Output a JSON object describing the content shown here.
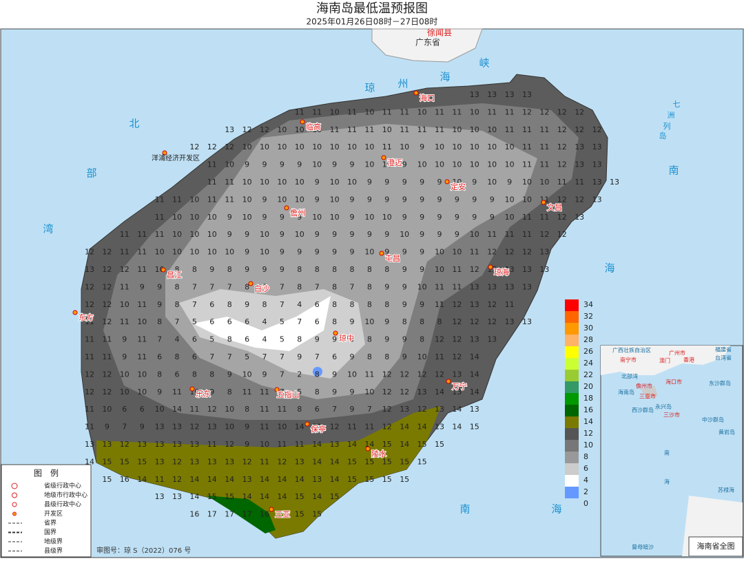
{
  "header": {
    "title": "海南岛最低温预报图",
    "subtitle": "2025年01月26日08时－27日08时"
  },
  "regions": [
    "徐闻县",
    "广东省"
  ],
  "seas": [
    "琼",
    "州",
    "海",
    "峡",
    "北",
    "部",
    "湾",
    "南",
    "海",
    "南",
    "海",
    "七",
    "洲",
    "列",
    "岛"
  ],
  "cities": [
    "海口",
    "临高",
    "洋浦经济开发区",
    "澄迈",
    "定安",
    "文昌",
    "儋州",
    "屯昌",
    "琼海",
    "昌江",
    "白沙",
    "东方",
    "琼中",
    "万宁",
    "乐东",
    "五指山",
    "保亭",
    "陵水",
    "三亚"
  ],
  "grid": [
    [
      13,
      13,
      13,
      13
    ],
    [
      11,
      11,
      10,
      11,
      10,
      11,
      11,
      10,
      11,
      11,
      10,
      11,
      11,
      12,
      12,
      12,
      12
    ],
    [
      13,
      12,
      12,
      10,
      10,
      10,
      11,
      11,
      11,
      10,
      11,
      11,
      11,
      10,
      10,
      10,
      11,
      11,
      11,
      12,
      12,
      12
    ],
    [
      12,
      12,
      12,
      10,
      10,
      10,
      10,
      10,
      10,
      10,
      10,
      11,
      10,
      9,
      10,
      10,
      10,
      10,
      10,
      11,
      11,
      12,
      13,
      13
    ],
    [
      11,
      10,
      9,
      9,
      9,
      9,
      10,
      9,
      9,
      10,
      10,
      9,
      10,
      10,
      10,
      10,
      10,
      10,
      11,
      11,
      12,
      13,
      13
    ],
    [
      11,
      11,
      10,
      10,
      10,
      10,
      9,
      10,
      10,
      9,
      9,
      9,
      9,
      9,
      10,
      9,
      10,
      9,
      10,
      10,
      11,
      11,
      13,
      13
    ],
    [
      11,
      11,
      10,
      11,
      11,
      10,
      9,
      10,
      10,
      9,
      10,
      9,
      9,
      9,
      9,
      9,
      9,
      9,
      9,
      9,
      10,
      10,
      11,
      12,
      12,
      13
    ],
    [
      11,
      10,
      10,
      10,
      9,
      10,
      9,
      9,
      9,
      10,
      10,
      9,
      10,
      10,
      9,
      9,
      9,
      9,
      9,
      9,
      10,
      11,
      11,
      12,
      13
    ],
    [
      11,
      11,
      11,
      10,
      10,
      10,
      9,
      9,
      10,
      9,
      10,
      9,
      9,
      9,
      9,
      9,
      10,
      9,
      9,
      9,
      10,
      11,
      11,
      11,
      12,
      12
    ],
    [
      12,
      12,
      11,
      11,
      10,
      10,
      10,
      10,
      10,
      9,
      10,
      9,
      9,
      9,
      9,
      9,
      10,
      9,
      9,
      9,
      10,
      10,
      11,
      12,
      12,
      12,
      13
    ],
    [
      13,
      12,
      12,
      11,
      10,
      8,
      8,
      9,
      8,
      9,
      9,
      9,
      8,
      8,
      8,
      8,
      8,
      8,
      9,
      9,
      10,
      11,
      12,
      12,
      13,
      13,
      13
    ],
    [
      12,
      12,
      11,
      9,
      9,
      8,
      7,
      7,
      7,
      8,
      8,
      7,
      8,
      7,
      8,
      7,
      8,
      9,
      9,
      10,
      11,
      11,
      13,
      13,
      13,
      13
    ],
    [
      12,
      12,
      10,
      11,
      9,
      8,
      7,
      6,
      8,
      9,
      8,
      7,
      4,
      6,
      8,
      8,
      8,
      8,
      9,
      9,
      11,
      12,
      13,
      12,
      11
    ],
    [
      11,
      12,
      11,
      10,
      8,
      7,
      5,
      6,
      6,
      6,
      4,
      5,
      7,
      6,
      8,
      9,
      10,
      9,
      8,
      8,
      8,
      12,
      12,
      12,
      13,
      13
    ],
    [
      11,
      11,
      9,
      11,
      7,
      4,
      6,
      5,
      8,
      6,
      4,
      5,
      8,
      9,
      9,
      9,
      8,
      9,
      9,
      8,
      12,
      12,
      13,
      13
    ],
    [
      11,
      11,
      9,
      11,
      6,
      8,
      6,
      7,
      7,
      5,
      7,
      7,
      9,
      7,
      6,
      9,
      8,
      8,
      9,
      10,
      11,
      12,
      14
    ],
    [
      12,
      12,
      10,
      10,
      8,
      6,
      8,
      8,
      9,
      10,
      9,
      7,
      2,
      8,
      9,
      10,
      11,
      12,
      12,
      12,
      12,
      13,
      14
    ],
    [
      12,
      12,
      10,
      10,
      9,
      11,
      10,
      9,
      8,
      11,
      11,
      7,
      5,
      8,
      9,
      9,
      10,
      12,
      12,
      13,
      14,
      13,
      14
    ],
    [
      11,
      10,
      6,
      6,
      10,
      14,
      11,
      12,
      10,
      8,
      11,
      11,
      8,
      6,
      7,
      9,
      7,
      12,
      13,
      12,
      13,
      14,
      13
    ],
    [
      11,
      9,
      7,
      9,
      13,
      13,
      12,
      13,
      10,
      9,
      11,
      10,
      14,
      11,
      12,
      11,
      11,
      12,
      14,
      14,
      13,
      14,
      15
    ],
    [
      13,
      13,
      12,
      13,
      13,
      13,
      13,
      11,
      12,
      9,
      10,
      11,
      11,
      14,
      13,
      14,
      14,
      15,
      14,
      15,
      15
    ],
    [
      14,
      15,
      15,
      15,
      13,
      12,
      13,
      13,
      13,
      12,
      11,
      12,
      13,
      14,
      14,
      15,
      15,
      15,
      15,
      15
    ],
    [
      15,
      16,
      14,
      11,
      12,
      14,
      14,
      14,
      13,
      14,
      14,
      14,
      13,
      14,
      15,
      15,
      15,
      15
    ],
    [
      13,
      13,
      14,
      15,
      15,
      14,
      14,
      14,
      15,
      14,
      15
    ],
    [
      16,
      17,
      17,
      17,
      16,
      15,
      15,
      15
    ]
  ],
  "scale": {
    "values": [
      34,
      32,
      30,
      28,
      26,
      24,
      22,
      20,
      18,
      16,
      14,
      12,
      10,
      8,
      6,
      4,
      2,
      0
    ],
    "colors": [
      "#ff0000",
      "#ff6600",
      "#ff9900",
      "#ffb366",
      "#ffff00",
      "#ccff33",
      "#99cc33",
      "#339966",
      "#009900",
      "#006600",
      "#7a7a00",
      "#555555",
      "#777777",
      "#999999",
      "#cccccc",
      "#ffffff",
      "#6699ff",
      "#3366ff"
    ]
  },
  "legend": {
    "title": "图　例",
    "items": [
      "省级行政中心",
      "地级市行政中心",
      "县级行政中心",
      "开发区",
      "省界",
      "国界",
      "地级界",
      "县级界"
    ]
  },
  "approval": "审图号：琼 S（2022）076 号",
  "inset": {
    "labels": [
      "广西壮族自治区",
      "南宁市",
      "广州市",
      "香港",
      "澳门",
      "福建省",
      "台湾省",
      "北部湾",
      "海口市",
      "儋州市",
      "三亚市",
      "海南岛",
      "东沙群岛",
      "西沙群岛",
      "永兴岛",
      "三沙市",
      "中沙群岛",
      "黄岩岛",
      "南",
      "海",
      "苏禄海",
      "曾母暗沙"
    ],
    "title": "海南省全图"
  }
}
